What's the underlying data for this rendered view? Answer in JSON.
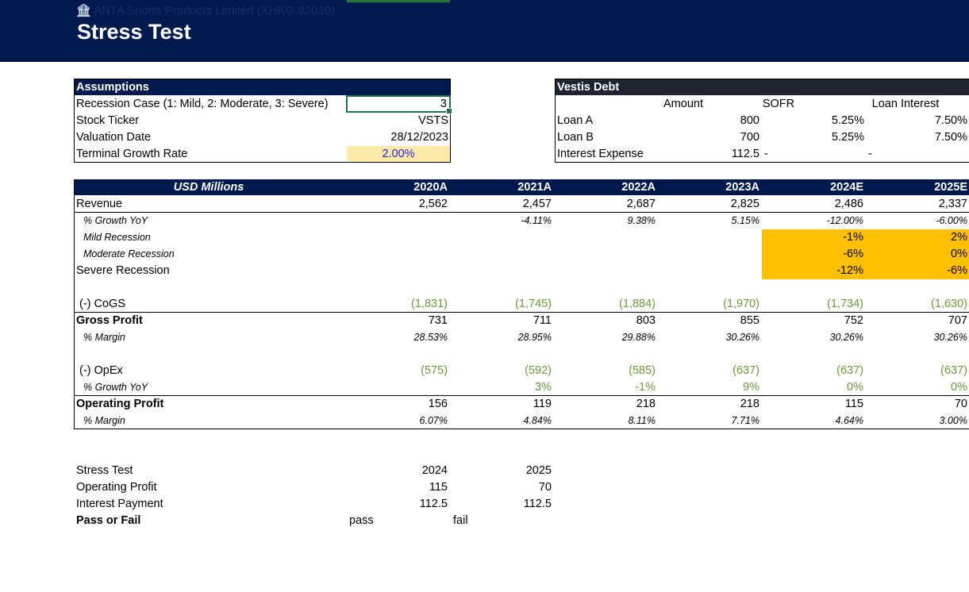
{
  "header": {
    "company": "ANTA Sports Products Limited (XHKG:82020)",
    "title": "Stress Test"
  },
  "assumptions": {
    "title": "Assumptions",
    "rows": [
      {
        "label": "Recession Case (1: Mild, 2: Moderate, 3: Severe)",
        "value": "3"
      },
      {
        "label": "Stock Ticker",
        "value": "VSTS"
      },
      {
        "label": "Valuation Date",
        "value": "28/12/2023"
      },
      {
        "label": "Terminal Growth Rate",
        "value": "2.00%"
      }
    ]
  },
  "debt": {
    "title": "Vestis Debt",
    "columns": [
      "Amount",
      "SOFR",
      "Loan Interest"
    ],
    "rows": [
      {
        "label": "Loan A",
        "amount": "800",
        "sofr": "5.25%",
        "interest": "7.50%"
      },
      {
        "label": "Loan B",
        "amount": "700",
        "sofr": "5.25%",
        "interest": "7.50%"
      },
      {
        "label": "Interest Expense",
        "amount": "112.5",
        "sofr": "-",
        "interest": "-"
      }
    ]
  },
  "model": {
    "unit_label": "USD Millions",
    "years": [
      "2020A",
      "2021A",
      "2022A",
      "2023A",
      "2024E",
      "2025E"
    ],
    "rows": {
      "revenue": {
        "label": "Revenue",
        "values": [
          "2,562",
          "2,457",
          "2,687",
          "2,825",
          "2,486",
          "2,337"
        ]
      },
      "growth": {
        "label": "% Growth YoY",
        "values": [
          "",
          "-4.11%",
          "9.38%",
          "5.15%",
          "-12.00%",
          "-6.00%"
        ]
      },
      "mild": {
        "label": "Mild Recession",
        "values": [
          "",
          "",
          "",
          "",
          "-1%",
          "2%"
        ]
      },
      "moderate": {
        "label": "Moderate Recession",
        "values": [
          "",
          "",
          "",
          "",
          "-6%",
          "0%"
        ]
      },
      "severe": {
        "label": "Severe Recession",
        "values": [
          "",
          "",
          "",
          "",
          "-12%",
          "-6%"
        ]
      },
      "cogs": {
        "label": "(-) CoGS",
        "values": [
          "(1,831)",
          "(1,745)",
          "(1,884)",
          "(1,970)",
          "(1,734)",
          "(1,630)"
        ]
      },
      "gross_profit": {
        "label": "Gross Profit",
        "values": [
          "731",
          "711",
          "803",
          "855",
          "752",
          "707"
        ]
      },
      "gross_margin": {
        "label": "% Margin",
        "values": [
          "28.53%",
          "28.95%",
          "29.88%",
          "30.26%",
          "30.26%",
          "30.26%"
        ]
      },
      "opex": {
        "label": "(-) OpEx",
        "values": [
          "(575)",
          "(592)",
          "(585)",
          "(637)",
          "(637)",
          "(637)"
        ]
      },
      "opex_growth": {
        "label": "% Growth YoY",
        "values": [
          "",
          "3%",
          "-1%",
          "9%",
          "0%",
          "0%"
        ]
      },
      "op_profit": {
        "label": "Operating Profit",
        "values": [
          "156",
          "119",
          "218",
          "218",
          "115",
          "70"
        ]
      },
      "op_margin": {
        "label": "% Margin",
        "values": [
          "6.07%",
          "4.84%",
          "8.11%",
          "7.71%",
          "4.64%",
          "3.00%"
        ]
      }
    }
  },
  "stress": {
    "rows": [
      {
        "label": "Stress Test",
        "y2024": "2024",
        "y2025": "2025"
      },
      {
        "label": "Operating Profit",
        "y2024": "115",
        "y2025": "70"
      },
      {
        "label": "Interest Payment",
        "y2024": "112.5",
        "y2025": "112.5"
      }
    ],
    "result": {
      "label": "Pass or Fail",
      "y2024": "pass",
      "y2025": "fail"
    }
  },
  "colors": {
    "navy": "#001a4d",
    "highlight": "#ffc000",
    "input": "#fde9a8",
    "formula_green": "#6a9a3a"
  }
}
